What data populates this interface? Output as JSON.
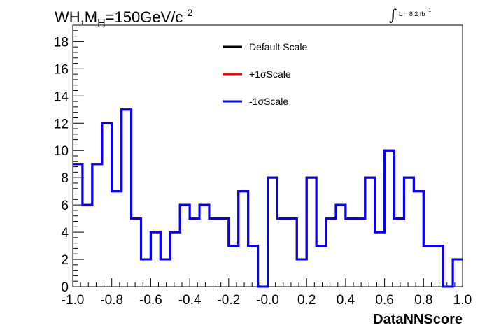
{
  "title": {
    "prefix": "WH,M",
    "subscript": "H",
    "value": "=150GeV/c",
    "superscript": "2"
  },
  "lumi": {
    "symbol": "∫",
    "text": "L = 8.2 fb",
    "superscript": "-1"
  },
  "chart_data": {
    "type": "line",
    "style": "step-histogram",
    "xlabel": "DataNNScore",
    "ylabel": "",
    "xlim": [
      -1.0,
      1.0
    ],
    "ylim": [
      0,
      19.2
    ],
    "x_ticks": [
      "-1.0",
      "-0.8",
      "-0.6",
      "-0.4",
      "-0.2",
      "-0.0",
      "0.2",
      "0.4",
      "0.6",
      "0.8",
      "1.0"
    ],
    "x_tick_values": [
      -1.0,
      -0.8,
      -0.6,
      -0.4,
      -0.2,
      0.0,
      0.2,
      0.4,
      0.6,
      0.8,
      1.0
    ],
    "y_ticks": [
      "0",
      "2",
      "4",
      "6",
      "8",
      "10",
      "12",
      "14",
      "16",
      "18"
    ],
    "y_tick_values": [
      0,
      2,
      4,
      6,
      8,
      10,
      12,
      14,
      16,
      18
    ],
    "bin_edges": [
      -1.0,
      -0.95,
      -0.9,
      -0.85,
      -0.8,
      -0.75,
      -0.7,
      -0.65,
      -0.6,
      -0.55,
      -0.5,
      -0.45,
      -0.4,
      -0.35,
      -0.3,
      -0.25,
      -0.2,
      -0.15,
      -0.1,
      -0.05,
      0.0,
      0.05,
      0.1,
      0.15,
      0.2,
      0.25,
      0.3,
      0.35,
      0.4,
      0.45,
      0.5,
      0.55,
      0.6,
      0.65,
      0.7,
      0.75,
      0.8,
      0.85,
      0.9,
      0.95,
      1.0
    ],
    "series": [
      {
        "name": "Default Scale",
        "color": "#000000",
        "values": [
          9,
          6,
          9,
          12,
          7,
          13,
          5,
          2,
          4,
          2,
          4,
          6,
          5,
          6,
          5,
          5,
          3,
          7,
          3,
          0,
          8,
          5,
          5,
          2,
          8,
          3,
          5,
          6,
          5,
          5,
          8,
          4,
          10,
          5,
          8,
          7,
          3,
          3,
          0,
          2
        ]
      },
      {
        "name": "+1σScale",
        "color": "#ff0000",
        "values": [
          9,
          6,
          9,
          12,
          7,
          13,
          5,
          2,
          4,
          2,
          4,
          6,
          5,
          6,
          5,
          5,
          3,
          7,
          3,
          0,
          8,
          5,
          5,
          2,
          8,
          3,
          5,
          6,
          5,
          5,
          8,
          4,
          10,
          5,
          8,
          7,
          3,
          3,
          0,
          2
        ]
      },
      {
        "name": "-1σScale",
        "color": "#0000ff",
        "values": [
          9,
          6,
          9,
          12,
          7,
          13,
          5,
          2,
          4,
          2,
          4,
          6,
          5,
          6,
          5,
          5,
          3,
          7,
          3,
          0,
          8,
          5,
          5,
          2,
          8,
          3,
          5,
          6,
          5,
          5,
          8,
          4,
          10,
          5,
          8,
          7,
          3,
          3,
          0,
          2
        ]
      }
    ],
    "legend_position": "top-center",
    "grid": false
  }
}
